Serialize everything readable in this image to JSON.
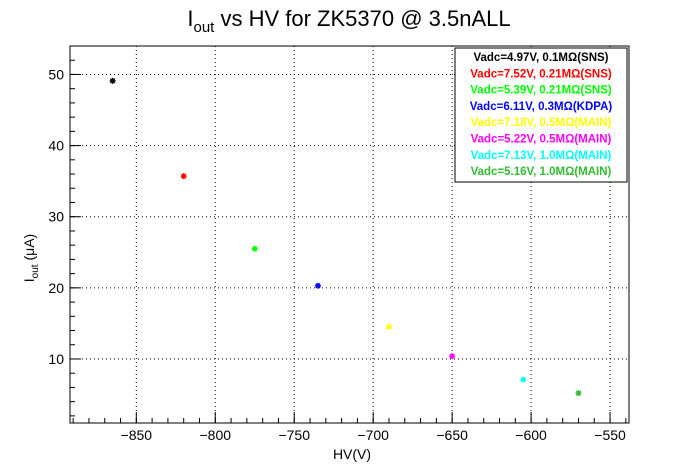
{
  "chart_data": {
    "type": "scatter",
    "title_main": "I",
    "title_sub": "out",
    "title_rest": " vs HV for ZK5370 @ 3.5nALL",
    "xlabel": "HV(V)",
    "ylabel_main": "I",
    "ylabel_sub": "out",
    "ylabel_rest": " (μA)",
    "xlim": [
      -892,
      -538
    ],
    "ylim": [
      1,
      54
    ],
    "x_ticks": [
      -850,
      -800,
      -750,
      -700,
      -650,
      -600,
      -550
    ],
    "x_tick_labels": [
      "−850",
      "−800",
      "−750",
      "−700",
      "−650",
      "−600",
      "−550"
    ],
    "y_ticks": [
      10,
      20,
      30,
      40,
      50
    ],
    "y_tick_labels": [
      "10",
      "20",
      "30",
      "40",
      "50"
    ],
    "grid": true,
    "legend_position": "top-right",
    "series": [
      {
        "name": "Vadc=4.97V, 0.1MΩ(SNS)",
        "color": "#000000",
        "x": [
          -865
        ],
        "y": [
          49.1
        ]
      },
      {
        "name": "Vadc=7.52V, 0.21MΩ(SNS)",
        "color": "#ff0000",
        "x": [
          -820
        ],
        "y": [
          35.7
        ]
      },
      {
        "name": "Vadc=5.39V, 0.21MΩ(SNS)",
        "color": "#00ff00",
        "x": [
          -775
        ],
        "y": [
          25.5
        ]
      },
      {
        "name": "Vadc=6.11V, 0.3MΩ(KDPA)",
        "color": "#0000ff",
        "x": [
          -735
        ],
        "y": [
          20.3
        ]
      },
      {
        "name": "Vadc=7.18V, 0.5MΩ(MAIN)",
        "color": "#ffff00",
        "x": [
          -690
        ],
        "y": [
          14.5
        ]
      },
      {
        "name": "Vadc=5.22V, 0.5MΩ(MAIN)",
        "color": "#ff00ff",
        "x": [
          -650
        ],
        "y": [
          10.4
        ]
      },
      {
        "name": "Vadc=7.13V, 1.0MΩ(MAIN)",
        "color": "#00ffff",
        "x": [
          -605
        ],
        "y": [
          7.1
        ]
      },
      {
        "name": "Vadc=5.16V, 1.0MΩ(MAIN)",
        "color": "#33bb33",
        "x": [
          -570
        ],
        "y": [
          5.2
        ]
      }
    ]
  }
}
